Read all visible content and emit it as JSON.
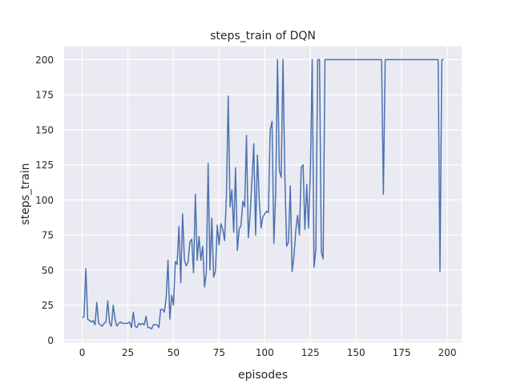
{
  "chart_data": {
    "type": "line",
    "title": "steps_train of DQN",
    "xlabel": "episodes",
    "ylabel": "steps_train",
    "xlim": [
      -9.9,
      207.9
    ],
    "ylim": [
      -1.6,
      209.6
    ],
    "xticks": [
      0,
      25,
      50,
      75,
      100,
      125,
      150,
      175,
      200
    ],
    "yticks": [
      0,
      25,
      50,
      75,
      100,
      125,
      150,
      175,
      200
    ],
    "grid": true,
    "colors": {
      "line": "#4c72b0",
      "background": "#eaeaf2",
      "grid": "#ffffff"
    },
    "series": [
      {
        "values": [
          16,
          17,
          51,
          15,
          14,
          13,
          14,
          11,
          27,
          12,
          11,
          10,
          12,
          13,
          28,
          12,
          10,
          25,
          15,
          10,
          12,
          13,
          12,
          12,
          12,
          12,
          13,
          9,
          20,
          10,
          9,
          12,
          11,
          12,
          11,
          17,
          9,
          9,
          8,
          11,
          11,
          11,
          9,
          22,
          22,
          20,
          30,
          57,
          15,
          32,
          25,
          56,
          54,
          81,
          41,
          90,
          57,
          53,
          56,
          70,
          72,
          48,
          104,
          57,
          74,
          57,
          67,
          38,
          48,
          126,
          50,
          87,
          45,
          49,
          82,
          68,
          83,
          79,
          71,
          102,
          174,
          95,
          107,
          77,
          123,
          64,
          79,
          82,
          99,
          95,
          146,
          73,
          90,
          114,
          140,
          75,
          132,
          100,
          80,
          88,
          90,
          92,
          91,
          150,
          156,
          69,
          105,
          200,
          121,
          116,
          200,
          118,
          67,
          70,
          110,
          49,
          60,
          78,
          89,
          75,
          123,
          125,
          79,
          111,
          80,
          120,
          200,
          52,
          65,
          200,
          200,
          63,
          58,
          200,
          200,
          200,
          200,
          200,
          200,
          200,
          200,
          200,
          200,
          200,
          200,
          200,
          200,
          200,
          200,
          200,
          200,
          200,
          200,
          200,
          200,
          200,
          200,
          200,
          200,
          200,
          200,
          200,
          200,
          200,
          200,
          104,
          200,
          200,
          200,
          200,
          200,
          200,
          200,
          200,
          200,
          200,
          200,
          200,
          200,
          200,
          200,
          200,
          200,
          200,
          200,
          200,
          200,
          200,
          200,
          200,
          200,
          200,
          200,
          200,
          200,
          200,
          49,
          200,
          200
        ]
      }
    ]
  }
}
